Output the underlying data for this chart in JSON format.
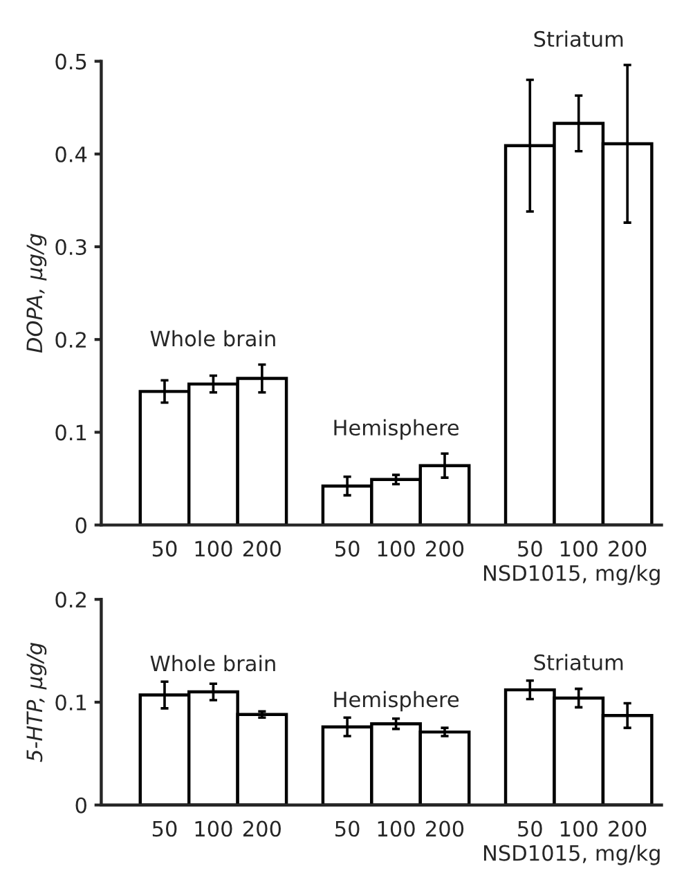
{
  "chart_data": [
    {
      "type": "bar",
      "categories": [
        "50",
        "100",
        "200",
        "50",
        "100",
        "200",
        "50",
        "100",
        "200"
      ],
      "ylabel": "DOPA, μg/g",
      "xlabel": "NSD1015, mg/kg",
      "values": [
        0.144,
        0.152,
        0.158,
        0.042,
        0.049,
        0.064,
        0.409,
        0.433,
        0.411
      ],
      "errors": [
        0.012,
        0.009,
        0.015,
        0.01,
        0.005,
        0.013,
        0.071,
        0.03,
        0.085
      ],
      "color": "#ffffff",
      "ylim": [
        0,
        0.5
      ],
      "yticks": [
        0,
        0.1,
        0.2,
        0.3,
        0.4,
        0.5
      ],
      "grid": false,
      "legend": false,
      "annotations": [
        "Whole brain",
        "Hemisphere",
        "Striatum"
      ]
    },
    {
      "type": "bar",
      "categories": [
        "50",
        "100",
        "200",
        "50",
        "100",
        "200",
        "50",
        "100",
        "200"
      ],
      "ylabel": "5-HTP, μg/g",
      "xlabel": "NSD1015, mg/kg",
      "values": [
        0.107,
        0.11,
        0.088,
        0.076,
        0.079,
        0.071,
        0.112,
        0.104,
        0.087
      ],
      "errors": [
        0.013,
        0.008,
        0.003,
        0.009,
        0.005,
        0.004,
        0.009,
        0.009,
        0.012
      ],
      "color": "#ffffff",
      "ylim": [
        0,
        0.2
      ],
      "yticks": [
        0,
        0.1,
        0.2
      ],
      "grid": false,
      "legend": false,
      "annotations": [
        "Whole brain",
        "Hemisphere",
        "Striatum"
      ]
    }
  ]
}
